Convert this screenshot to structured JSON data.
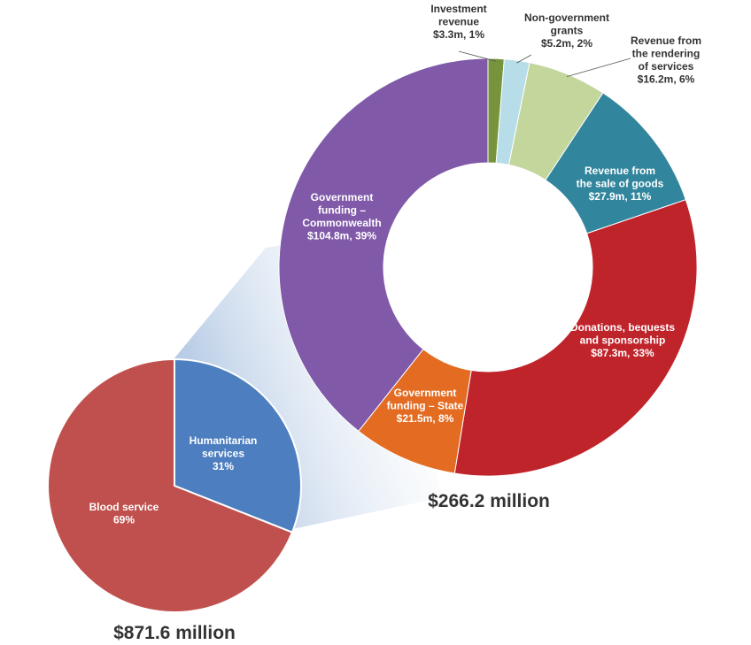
{
  "chart_data": [
    {
      "type": "pie",
      "total_label": "$871.6 million",
      "slices": [
        {
          "label": "Humanitarian services",
          "percent": 31,
          "label_text": [
            "Humanitarian",
            "services",
            "31%"
          ],
          "color": "#4d7ebf"
        },
        {
          "label": "Blood service",
          "percent": 69,
          "label_text": [
            "Blood service",
            "69%"
          ],
          "color": "#c0504d"
        }
      ]
    },
    {
      "type": "donut",
      "total_label": "$266.2 million",
      "slices": [
        {
          "label": "Investment revenue",
          "value": 3.3,
          "percent": 1,
          "label_text": [
            "Investment",
            "revenue",
            "$3.3m, 1%"
          ],
          "color": "#77933c"
        },
        {
          "label": "Non-government grants",
          "value": 5.2,
          "percent": 2,
          "label_text": [
            "Non-government",
            "grants",
            "$5.2m, 2%"
          ],
          "color": "#b7dde8"
        },
        {
          "label": "Revenue from the rendering of services",
          "value": 16.2,
          "percent": 6,
          "label_text": [
            "Revenue from",
            "the rendering",
            "of services",
            "$16.2m, 6%"
          ],
          "color": "#c3d69b"
        },
        {
          "label": "Revenue from the sale of goods",
          "value": 27.9,
          "percent": 11,
          "label_text": [
            "Revenue from",
            "the sale of goods",
            "$27.9m, 11%"
          ],
          "color": "#31859c"
        },
        {
          "label": "Donations, bequests and sponsorship",
          "value": 87.3,
          "percent": 33,
          "label_text": [
            "Donations, bequests",
            "and sponsorship",
            "$87.3m, 33%"
          ],
          "color": "#c0242b"
        },
        {
          "label": "Government funding - State",
          "value": 21.5,
          "percent": 8,
          "label_text": [
            "Government",
            "funding – State",
            "$21.5m, 8%"
          ],
          "color": "#e36c22"
        },
        {
          "label": "Government funding - Commonwealth",
          "value": 104.8,
          "percent": 39,
          "label_text": [
            "Government",
            "funding –",
            "Commonwealth",
            "$104.8m, 39%"
          ],
          "color": "#8059a8"
        }
      ]
    }
  ]
}
